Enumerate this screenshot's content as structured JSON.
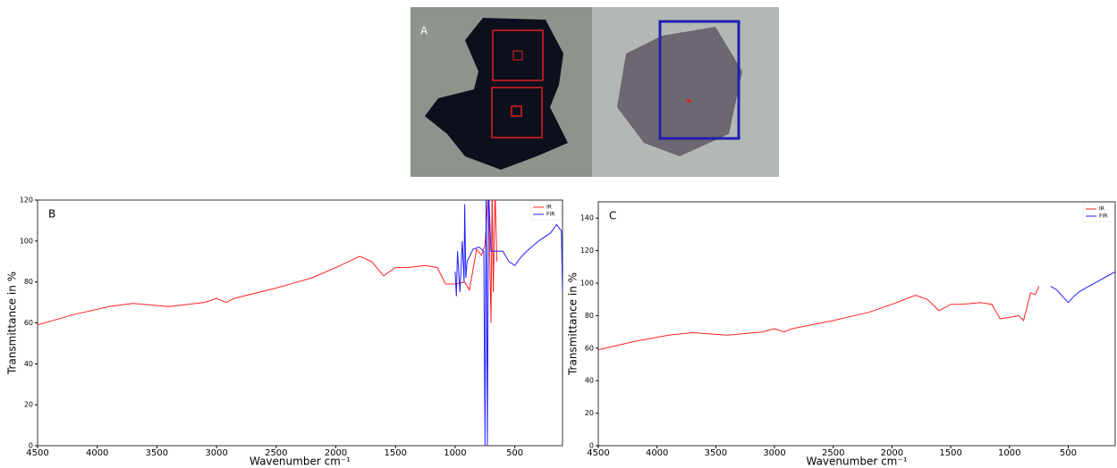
{
  "image_panel": {
    "label": "A"
  },
  "chart_data": [
    {
      "type": "line",
      "panel_label": "B",
      "xlabel": "Wavenumber cm⁻¹",
      "ylabel": "Transmittance in %",
      "xlim": [
        4500,
        100
      ],
      "xticks": [
        4500,
        4000,
        3500,
        3000,
        2500,
        2000,
        1500,
        1000,
        500
      ],
      "ylim": [
        0,
        120
      ],
      "yticks": [
        0,
        20,
        40,
        60,
        80,
        100,
        120
      ],
      "legend": "upper right",
      "series": [
        {
          "name": "IR",
          "color": "#ff2020",
          "x": [
            4500,
            4200,
            3900,
            3700,
            3400,
            3100,
            3000,
            2920,
            2850,
            2500,
            2350,
            2200,
            2000,
            1800,
            1700,
            1600,
            1500,
            1400,
            1250,
            1150,
            1080,
            1000,
            920,
            880,
            820,
            780,
            750,
            720,
            700,
            690,
            680,
            665,
            650
          ],
          "values": [
            59,
            64,
            68,
            69.5,
            68,
            70,
            72,
            70,
            72,
            77,
            79.5,
            82,
            87,
            92.5,
            90,
            83,
            87,
            87,
            88,
            87,
            79,
            79,
            80,
            76,
            96,
            93,
            98,
            125,
            60,
            125,
            75,
            125,
            90
          ]
        },
        {
          "name": "FIR",
          "color": "#2020ff",
          "x": [
            1000,
            990,
            980,
            960,
            940,
            925,
            920,
            910,
            900,
            850,
            800,
            760,
            750,
            740,
            730,
            720,
            700,
            600,
            550,
            500,
            450,
            400,
            300,
            200,
            150,
            110,
            100
          ],
          "values": [
            85,
            73,
            95,
            75,
            100,
            80,
            118,
            82,
            90,
            96,
            97,
            95,
            0,
            125,
            0,
            125,
            95,
            95,
            90,
            88,
            92,
            95,
            100,
            104,
            108,
            105,
            75
          ]
        }
      ]
    },
    {
      "type": "line",
      "panel_label": "C",
      "xlabel": "Wavenumber cm⁻¹",
      "ylabel": "Transmittance in %",
      "xlim": [
        4500,
        100
      ],
      "xticks": [
        4500,
        4000,
        3500,
        3000,
        2500,
        2000,
        1500,
        1000,
        500
      ],
      "ylim": [
        0,
        150
      ],
      "yticks": [
        0,
        20,
        40,
        60,
        80,
        100,
        120,
        140
      ],
      "legend": "upper right",
      "series": [
        {
          "name": "IR",
          "color": "#ff2020",
          "x": [
            4500,
            4200,
            3900,
            3700,
            3400,
            3100,
            3000,
            2920,
            2850,
            2500,
            2350,
            2200,
            2000,
            1800,
            1700,
            1600,
            1500,
            1400,
            1250,
            1150,
            1080,
            1000,
            920,
            880,
            820,
            780,
            750
          ],
          "values": [
            59,
            64,
            68,
            69.5,
            68,
            70,
            72,
            70,
            72,
            77,
            79.5,
            82,
            87,
            92.5,
            90,
            83,
            87,
            87,
            88,
            87,
            78,
            79,
            80,
            77,
            94,
            93,
            98
          ]
        },
        {
          "name": "FIR",
          "color": "#2020ff",
          "x": [
            650,
            600,
            550,
            500,
            450,
            400,
            300,
            200,
            100
          ],
          "values": [
            98,
            96,
            92,
            88,
            92,
            95,
            99,
            103,
            107
          ]
        }
      ]
    }
  ]
}
